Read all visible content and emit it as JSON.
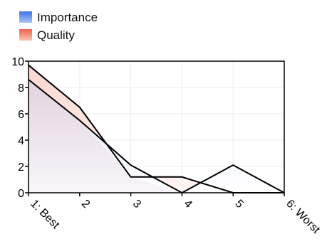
{
  "chart_data": {
    "type": "area",
    "categories": [
      "1: Best",
      "2",
      "3",
      "4",
      "5",
      "6: Worst"
    ],
    "ylim": [
      0,
      10
    ],
    "yticks": [
      "0",
      "2",
      "4",
      "6",
      "8",
      "10"
    ],
    "grid": true,
    "legend_position": "top-left",
    "series": [
      {
        "name": "Importance",
        "values": [
          9.7,
          6.5,
          1.2,
          1.2,
          0,
          0
        ],
        "color": "#4a7ee0",
        "fill": "#eef3fd"
      },
      {
        "name": "Quality",
        "values": [
          8.6,
          5.5,
          2.1,
          0,
          2.1,
          0
        ],
        "color": "#f0705a",
        "fill": "#fbe6e2"
      }
    ],
    "line_color": "#000000",
    "overlap_fill": "#e3d4df"
  }
}
